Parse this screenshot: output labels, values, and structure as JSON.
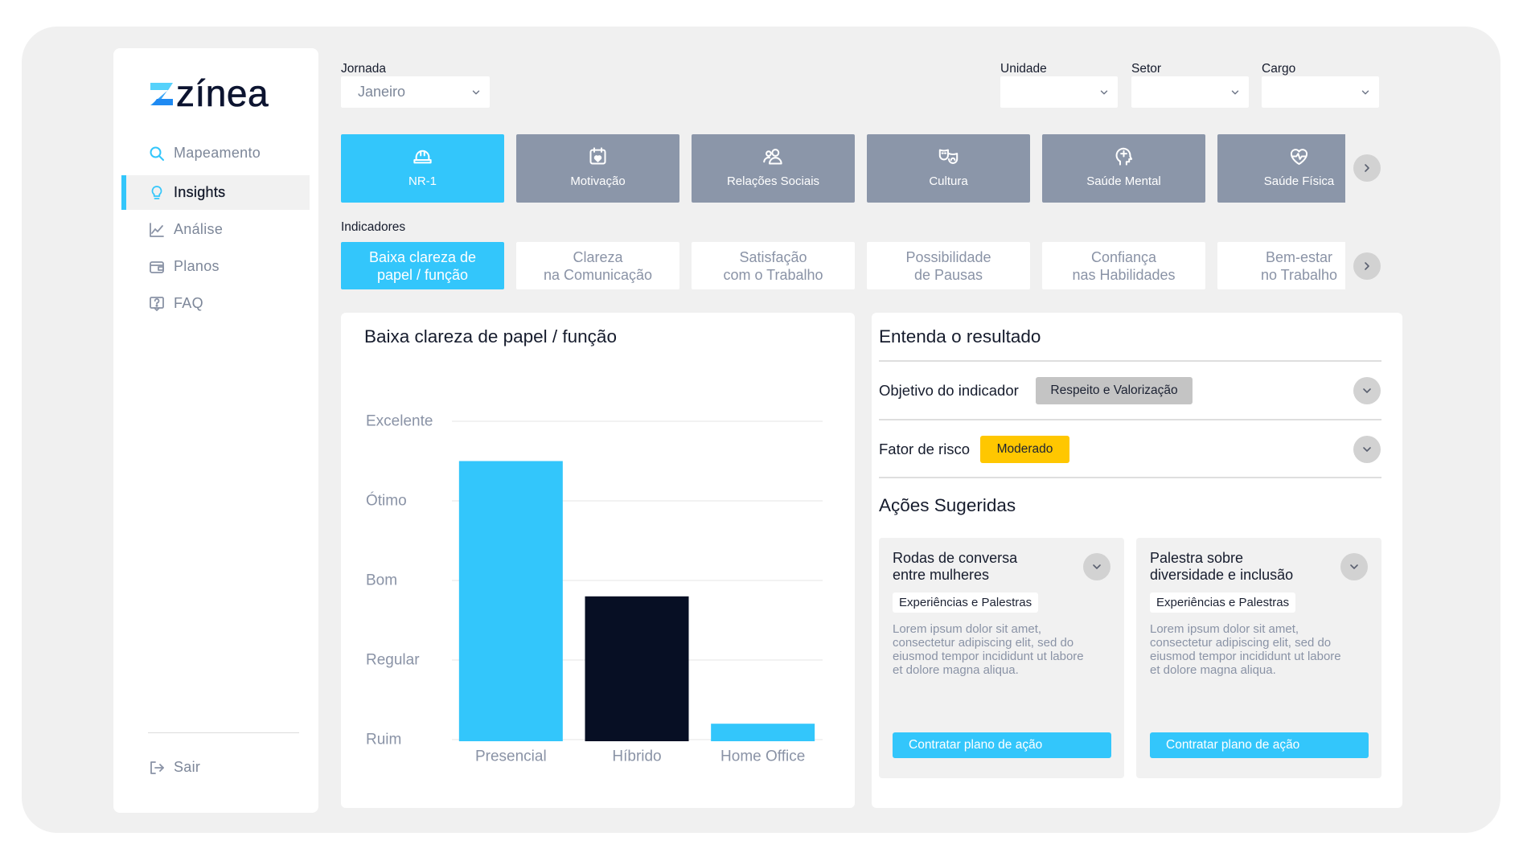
{
  "app": {
    "logo_text": "zínea"
  },
  "sidebar": {
    "items": [
      {
        "label": "Mapeamento",
        "icon": "search-icon",
        "active": false
      },
      {
        "label": "Insights",
        "icon": "lightbulb-icon",
        "active": true
      },
      {
        "label": "Análise",
        "icon": "line-chart-icon",
        "active": false
      },
      {
        "label": "Planos",
        "icon": "wallet-icon",
        "active": false
      },
      {
        "label": "FAQ",
        "icon": "faq-icon",
        "active": false
      }
    ],
    "logout": {
      "label": "Sair",
      "icon": "logout-icon"
    }
  },
  "filters": {
    "jornada": {
      "label": "Jornada",
      "value": "Janeiro"
    },
    "unidade": {
      "label": "Unidade"
    },
    "setor": {
      "label": "Setor"
    },
    "cargo": {
      "label": "Cargo"
    }
  },
  "categories": [
    {
      "label": "NR-1",
      "icon": "hard-hat-icon",
      "active": true
    },
    {
      "label": "Motivação",
      "icon": "calendar-heart-icon",
      "active": false
    },
    {
      "label": "Relações Sociais",
      "icon": "people-icon",
      "active": false
    },
    {
      "label": "Cultura",
      "icon": "theater-masks-icon",
      "active": false
    },
    {
      "label": "Saúde Mental",
      "icon": "mind-icon",
      "active": false
    },
    {
      "label": "Saúde Física",
      "icon": "heart-pulse-icon",
      "active": false
    }
  ],
  "indicators": {
    "label": "Indicadores",
    "items": [
      {
        "lines": [
          "Baixa clareza de",
          "papel / função"
        ],
        "active": true
      },
      {
        "lines": [
          "Clareza",
          "na Comunicação"
        ],
        "active": false
      },
      {
        "lines": [
          "Satisfação",
          "com o Trabalho"
        ],
        "active": false
      },
      {
        "lines": [
          "Possibilidade",
          "de Pausas"
        ],
        "active": false
      },
      {
        "lines": [
          "Confiança",
          "nas Habilidades"
        ],
        "active": false
      },
      {
        "lines": [
          "Bem-estar",
          "no Trabalho"
        ],
        "active": false
      }
    ]
  },
  "chart_data": {
    "type": "bar",
    "title": "Baixa clareza de papel / função",
    "categories": [
      "Presencial",
      "Híbrido",
      "Home Office"
    ],
    "values": [
      4.5,
      2.8,
      1.2
    ],
    "colors": [
      "#33c6fb",
      "#070f24",
      "#33c6fb"
    ],
    "y_ticks": [
      {
        "value": 1,
        "label": "Ruim"
      },
      {
        "value": 2,
        "label": "Regular"
      },
      {
        "value": 3,
        "label": "Bom"
      },
      {
        "value": 4,
        "label": "Ótimo"
      },
      {
        "value": 5,
        "label": "Excelente"
      }
    ],
    "ylim": [
      1,
      5
    ],
    "xlabel": "",
    "ylabel": "",
    "grid": true
  },
  "result": {
    "title": "Entenda o resultado",
    "objective": {
      "label": "Objetivo do indicador",
      "value": "Respeito e Valorização"
    },
    "risk": {
      "label": "Fator de risco",
      "value": "Moderado"
    },
    "actions_title": "Ações Sugeridas",
    "actions": [
      {
        "title_lines": [
          "Rodas de conversa",
          "entre mulheres"
        ],
        "tag": "Experiências e Palestras",
        "description_lines": [
          "Lorem ipsum dolor sit amet,",
          "consectetur adipiscing elit, sed do",
          "eiusmod tempor incididunt ut labore",
          "et dolore magna aliqua."
        ],
        "button": "Contratar plano de ação"
      },
      {
        "title_lines": [
          "Palestra sobre",
          "diversidade e inclusão"
        ],
        "tag": "Experiências e Palestras",
        "description_lines": [
          "Lorem ipsum dolor sit amet,",
          "consectetur adipiscing elit, sed do",
          "eiusmod tempor incididunt ut labore",
          "et dolore magna aliqua."
        ],
        "button": "Contratar plano de ação"
      }
    ]
  },
  "colors": {
    "accent": "#33c6fb",
    "dark_bar": "#070f24",
    "tile_gray": "#8b96a9",
    "risk_moderate": "#ffc700",
    "pill_gray": "#c4c4c4",
    "background": "#f0f0f0"
  }
}
